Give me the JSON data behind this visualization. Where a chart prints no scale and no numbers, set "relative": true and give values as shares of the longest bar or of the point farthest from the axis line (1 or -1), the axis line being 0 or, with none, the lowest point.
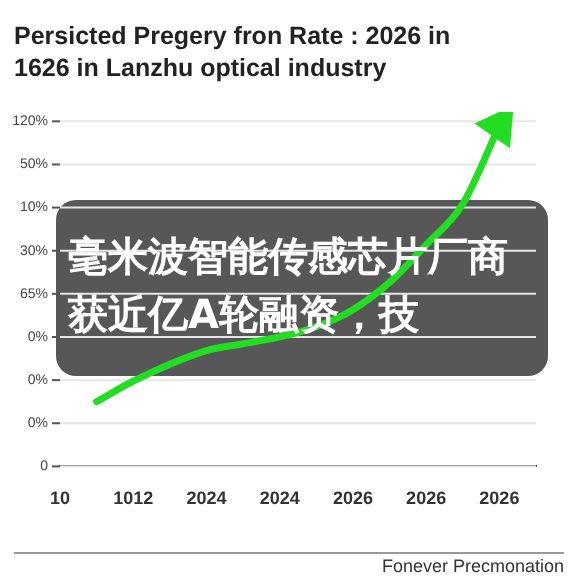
{
  "chart_data": {
    "type": "line",
    "title": "Persicted Pregery fron Rate : 2026 in 1626 in Lanzhu optical industry",
    "categories": [
      "10",
      null,
      "1012",
      null,
      "2024",
      null,
      "2024",
      null,
      "2026",
      null,
      "2026",
      null,
      "2026",
      null
    ],
    "relative": true,
    "series": [
      {
        "color": "#22dd22",
        "values": [
          null,
          0.19,
          0.25,
          0.3,
          0.34,
          0.36,
          0.38,
          0.41,
          0.46,
          0.54,
          0.65,
          0.77,
          1.0,
          null
        ]
      }
    ],
    "grid": "y",
    "annotations": [
      "毫米波智能传感芯片厂商获近亿A轮融资，技",
      "Fonever Precmonation",
      "0",
      "0%",
      "0%",
      "0%",
      "65%",
      "30%",
      "10%",
      "50%",
      "120%"
    ]
  }
}
